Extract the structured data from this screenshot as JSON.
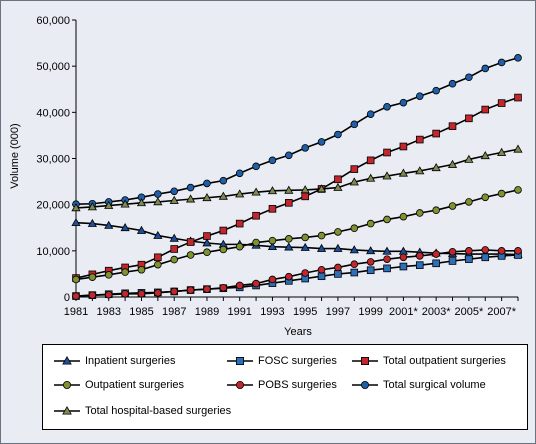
{
  "chart_data": {
    "type": "line",
    "xlabel": "Years",
    "ylabel": "Volume (000)",
    "ylim": [
      0,
      60000
    ],
    "y_ticks": [
      "0",
      "10,000",
      "20,000",
      "30,000",
      "40,000",
      "50,000",
      "60,000"
    ],
    "x_tick_labels": [
      "1981",
      "1983",
      "1985",
      "1987",
      "1989",
      "1991",
      "1993",
      "1995",
      "1997",
      "1999",
      "2001*",
      "2003*",
      "2005*",
      "2007*"
    ],
    "x": [
      1981,
      1982,
      1983,
      1984,
      1985,
      1986,
      1987,
      1988,
      1989,
      1990,
      1991,
      1992,
      1993,
      1994,
      1995,
      1996,
      1997,
      1998,
      1999,
      2000,
      2001,
      2002,
      2003,
      2004,
      2005,
      2006,
      2007,
      2008
    ],
    "grid": false,
    "legend_position": "bottom",
    "series": [
      {
        "name": "Inpatient surgeries",
        "marker": "triangle",
        "color": "#1e4f9a",
        "values": [
          16100,
          15900,
          15500,
          15000,
          14400,
          13300,
          12700,
          12100,
          11700,
          11400,
          11400,
          11200,
          10900,
          10800,
          10700,
          10500,
          10500,
          10200,
          10000,
          9900,
          9900,
          9700,
          9500,
          9400,
          9300,
          9300,
          9300,
          9200
        ]
      },
      {
        "name": "FOSC surgeries",
        "marker": "square",
        "color": "#2d6fb8",
        "values": [
          200,
          400,
          600,
          800,
          900,
          1000,
          1200,
          1500,
          1700,
          1900,
          2100,
          2500,
          3000,
          3500,
          4000,
          4500,
          5000,
          5300,
          5800,
          6200,
          6600,
          6900,
          7300,
          7800,
          8200,
          8600,
          8900,
          9100
        ]
      },
      {
        "name": "Total outpatient surgeries",
        "marker": "square",
        "color": "#c1272d",
        "values": [
          4100,
          4900,
          5700,
          6400,
          7000,
          8600,
          10400,
          11900,
          13200,
          14400,
          15900,
          17600,
          19100,
          20400,
          21800,
          23400,
          25500,
          27700,
          29600,
          31300,
          32600,
          34100,
          35400,
          37000,
          38700,
          40600,
          42000,
          43200
        ]
      },
      {
        "name": "Outpatient surgeries",
        "marker": "circle",
        "color": "#7e9230",
        "values": [
          3800,
          4300,
          4800,
          5400,
          5900,
          7000,
          8100,
          9100,
          9700,
          10300,
          10900,
          11800,
          12200,
          12600,
          12900,
          13300,
          14100,
          14900,
          15900,
          16800,
          17400,
          18200,
          18800,
          19700,
          20600,
          21600,
          22400,
          23200
        ]
      },
      {
        "name": "POBS surgeries",
        "marker": "circle",
        "color": "#c1272d",
        "values": [
          200,
          400,
          500,
          700,
          700,
          900,
          1200,
          1500,
          1700,
          2000,
          2500,
          2900,
          3800,
          4400,
          5200,
          5900,
          6400,
          7100,
          7600,
          8200,
          8600,
          8900,
          9300,
          9800,
          10000,
          10200,
          10000,
          10000
        ]
      },
      {
        "name": "Total surgical volume",
        "marker": "circle",
        "color": "#1e5fa8",
        "values": [
          20100,
          20200,
          20600,
          21000,
          21600,
          22300,
          22900,
          23700,
          24600,
          25200,
          26800,
          28300,
          29600,
          30700,
          32300,
          33600,
          35200,
          37400,
          39600,
          41200,
          42100,
          43500,
          44700,
          46200,
          47600,
          49500,
          50800,
          51800
        ]
      },
      {
        "name": "Total hospital-based surgeries",
        "marker": "triangle",
        "color": "#7e8a52",
        "values": [
          19300,
          19500,
          19800,
          20100,
          20400,
          20600,
          20900,
          21200,
          21500,
          21800,
          22300,
          22700,
          23000,
          23100,
          23200,
          23400,
          23700,
          24900,
          25700,
          26200,
          26800,
          27300,
          28000,
          28700,
          29800,
          30600,
          31300,
          32000
        ]
      }
    ]
  }
}
